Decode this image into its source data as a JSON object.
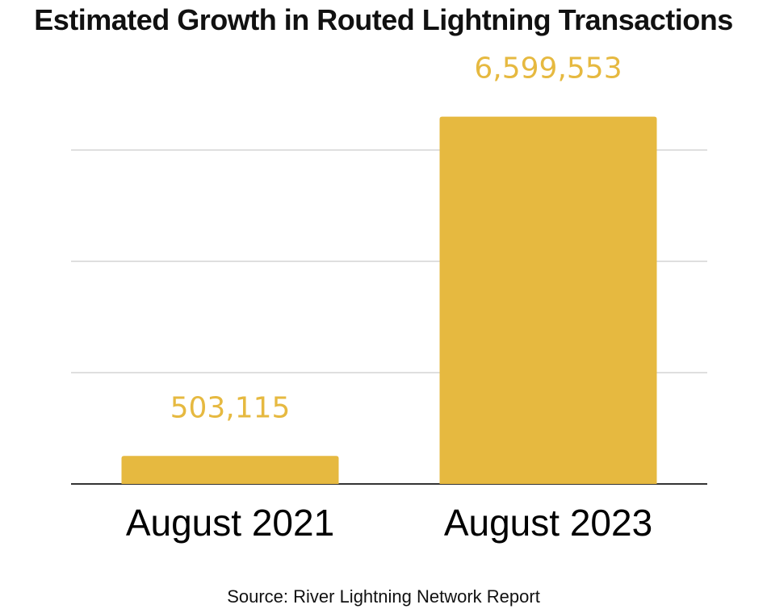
{
  "chart_data": {
    "type": "bar",
    "title": "Estimated Growth in Routed Lightning Transactions",
    "categories": [
      "August 2021",
      "August 2023"
    ],
    "values": [
      503115,
      6599553
    ],
    "data_labels": [
      "503,115",
      "6,599,553"
    ],
    "xlabel": "",
    "ylabel": "",
    "ylim": [
      0,
      6000000
    ],
    "y_gridlines": [
      0,
      2000000,
      4000000,
      6000000
    ],
    "y_tick_labels_visible": false,
    "grid": true,
    "legend": "none",
    "bar_color": "#e6b940",
    "label_color": "#e6b940",
    "source": "Source: River Lightning Network Report"
  }
}
